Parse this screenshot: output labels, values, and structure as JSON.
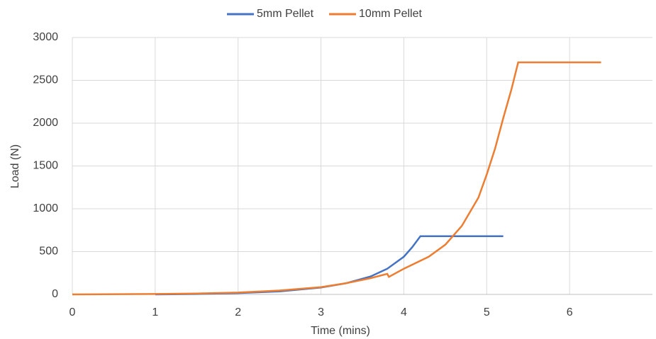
{
  "chart_data": {
    "type": "line",
    "x_label": "Time (mins)",
    "y_label": "Load (N)",
    "xlim": [
      0,
      7
    ],
    "xticks": [
      0,
      1,
      2,
      3,
      4,
      5,
      6
    ],
    "ylim": [
      0,
      3000
    ],
    "yticks": [
      0,
      500,
      1000,
      1500,
      2000,
      2500,
      3000
    ],
    "grid": true,
    "legend": "top",
    "series": [
      {
        "name": "5mm Pellet",
        "color": "#4472c4",
        "x": [
          1,
          1.5,
          2,
          2.5,
          3,
          3.3,
          3.6,
          3.8,
          4.0,
          4.1,
          4.2,
          4.5,
          5.2
        ],
        "values": [
          0,
          5,
          15,
          35,
          80,
          130,
          210,
          300,
          440,
          550,
          680,
          680,
          680
        ]
      },
      {
        "name": "10mm Pellet",
        "color": "#ed7d31",
        "x": [
          0,
          1,
          1.5,
          2,
          2.5,
          3,
          3.3,
          3.6,
          3.8,
          3.82,
          4.0,
          4.3,
          4.5,
          4.7,
          4.9,
          5.0,
          5.1,
          5.2,
          5.3,
          5.38,
          6.38
        ],
        "values": [
          0,
          5,
          10,
          22,
          45,
          85,
          130,
          190,
          240,
          205,
          300,
          440,
          580,
          800,
          1130,
          1400,
          1700,
          2060,
          2400,
          2710,
          2710
        ]
      }
    ]
  }
}
